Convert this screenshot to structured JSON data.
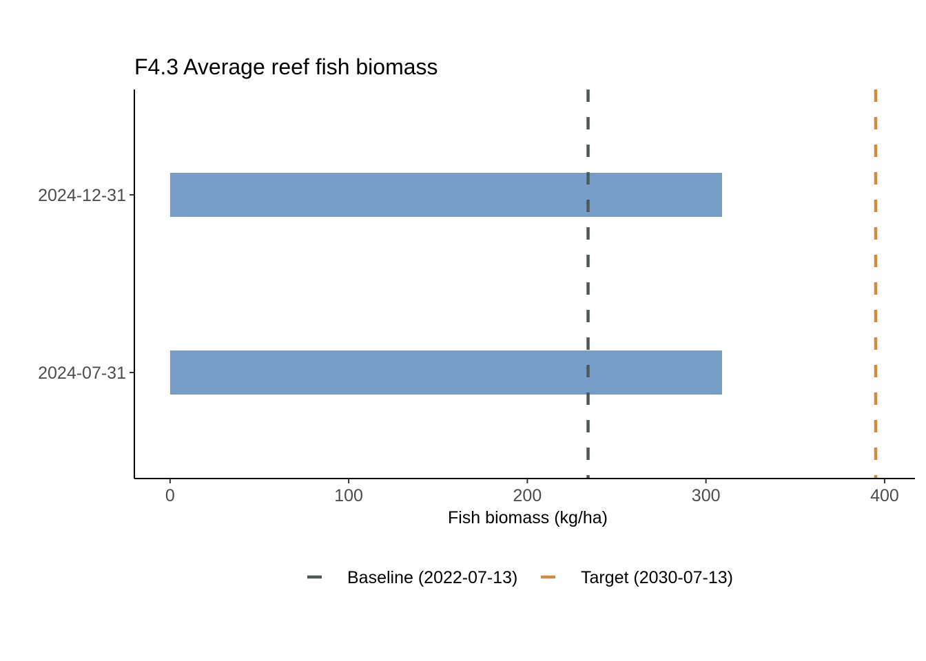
{
  "chart_data": {
    "type": "bar",
    "orientation": "horizontal",
    "title": "F4.3 Average reef fish biomass",
    "xlabel": "Fish biomass (kg/ha)",
    "ylabel": "",
    "categories": [
      "2024-07-31",
      "2024-12-31"
    ],
    "values": [
      309,
      309
    ],
    "xlim": [
      -20,
      417
    ],
    "x_ticks": [
      0,
      100,
      200,
      300,
      400
    ],
    "bar_color": "#789ec8",
    "grid": false,
    "legend_position": "bottom",
    "reference_lines": [
      {
        "label": "Baseline (2022-07-13)",
        "value": 234,
        "color": "#4a5a57",
        "style": "dashed"
      },
      {
        "label": "Target (2030-07-13)",
        "value": 395,
        "color": "#d38c3b",
        "style": "dashed"
      }
    ]
  }
}
